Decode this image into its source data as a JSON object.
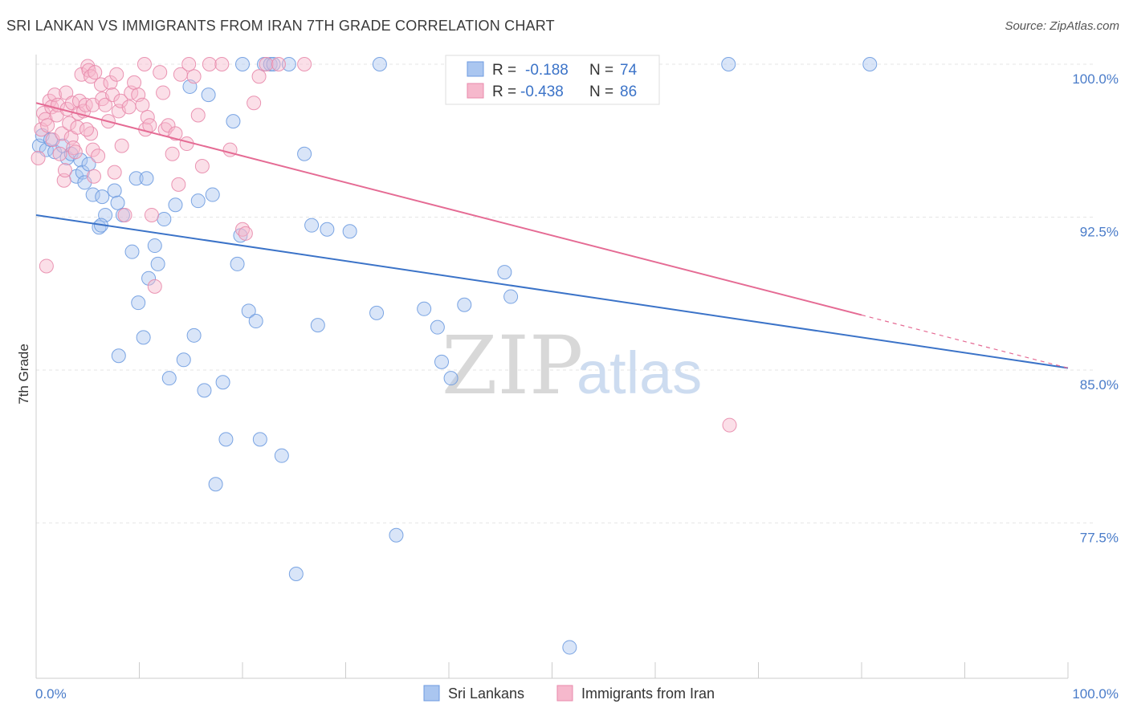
{
  "title": "SRI LANKAN VS IMMIGRANTS FROM IRAN 7TH GRADE CORRELATION CHART",
  "source": "Source: ZipAtlas.com",
  "watermark": {
    "zip": "ZIP",
    "atlas": "atlas"
  },
  "colors": {
    "blue": "#3b73c8",
    "blue_fill": "#aac6f0",
    "pink": "#e56b94",
    "pink_fill": "#f6b8cc",
    "grid": "#e6e6e6",
    "tick_text": "#4a7cc9"
  },
  "legend": {
    "rows": [
      {
        "r_label": "R =",
        "r_value": "-0.188",
        "n_label": "N =",
        "n_value": "74"
      },
      {
        "r_label": "R =",
        "r_value": "-0.438",
        "n_label": "N =",
        "n_value": "86"
      }
    ]
  },
  "chart_data": {
    "type": "scatter",
    "title": "SRI LANKAN VS IMMIGRANTS FROM IRAN 7TH GRADE CORRELATION CHART",
    "xlabel": "",
    "ylabel": "7th Grade",
    "xlim": [
      0,
      100
    ],
    "ylim": [
      70.8,
      101.2
    ],
    "x_tick_labels": [
      "0.0%",
      "100.0%"
    ],
    "y_ticks": [
      77.5,
      85.0,
      92.5,
      100.0
    ],
    "y_tick_labels": [
      "77.5%",
      "85.0%",
      "92.5%",
      "100.0%"
    ],
    "grid": true,
    "series": [
      {
        "name": "Sri Lankans",
        "R": -0.188,
        "N": 74,
        "trend": {
          "x0": 0,
          "y0": 92.6,
          "x1": 100,
          "y1": 85.1
        },
        "points": [
          [
            0.3,
            96.0
          ],
          [
            0.6,
            96.5
          ],
          [
            1.0,
            95.8
          ],
          [
            1.4,
            96.3
          ],
          [
            1.8,
            95.7
          ],
          [
            2.6,
            96.0
          ],
          [
            3.0,
            95.4
          ],
          [
            3.4,
            95.6
          ],
          [
            3.9,
            94.5
          ],
          [
            4.3,
            95.3
          ],
          [
            4.5,
            94.7
          ],
          [
            4.7,
            94.2
          ],
          [
            5.1,
            95.1
          ],
          [
            5.5,
            93.6
          ],
          [
            6.4,
            93.5
          ],
          [
            6.1,
            92.0
          ],
          [
            6.7,
            92.6
          ],
          [
            6.3,
            92.1
          ],
          [
            7.6,
            93.8
          ],
          [
            7.9,
            93.2
          ],
          [
            8.4,
            92.6
          ],
          [
            9.3,
            90.8
          ],
          [
            9.7,
            94.4
          ],
          [
            10.7,
            94.4
          ],
          [
            11.5,
            91.1
          ],
          [
            11.8,
            90.2
          ],
          [
            10.9,
            89.5
          ],
          [
            9.9,
            88.3
          ],
          [
            10.4,
            86.6
          ],
          [
            8.0,
            85.7
          ],
          [
            12.4,
            92.4
          ],
          [
            12.9,
            84.6
          ],
          [
            13.5,
            93.1
          ],
          [
            14.3,
            85.5
          ],
          [
            14.9,
            98.9
          ],
          [
            15.3,
            86.7
          ],
          [
            15.7,
            93.3
          ],
          [
            16.3,
            84.0
          ],
          [
            16.7,
            98.5
          ],
          [
            17.1,
            93.6
          ],
          [
            18.1,
            84.4
          ],
          [
            18.4,
            81.6
          ],
          [
            17.4,
            79.4
          ],
          [
            19.1,
            97.2
          ],
          [
            19.5,
            90.2
          ],
          [
            19.8,
            91.6
          ],
          [
            20.0,
            100.0
          ],
          [
            20.6,
            87.9
          ],
          [
            21.3,
            87.4
          ],
          [
            21.7,
            81.6
          ],
          [
            22.1,
            100.0
          ],
          [
            22.7,
            100.0
          ],
          [
            23.0,
            100.0
          ],
          [
            23.8,
            80.8
          ],
          [
            24.5,
            100.0
          ],
          [
            25.2,
            75.0
          ],
          [
            26.0,
            95.6
          ],
          [
            26.7,
            92.1
          ],
          [
            27.3,
            87.2
          ],
          [
            28.2,
            91.9
          ],
          [
            30.4,
            91.8
          ],
          [
            33.3,
            100.0
          ],
          [
            33.0,
            87.8
          ],
          [
            34.9,
            76.9
          ],
          [
            37.6,
            88.0
          ],
          [
            38.9,
            87.1
          ],
          [
            39.3,
            85.4
          ],
          [
            40.2,
            84.6
          ],
          [
            41.5,
            88.2
          ],
          [
            45.4,
            89.8
          ],
          [
            46.0,
            88.6
          ],
          [
            51.7,
            71.4
          ],
          [
            67.1,
            100.0
          ],
          [
            80.8,
            100.0
          ]
        ]
      },
      {
        "name": "Immigrants from Iran",
        "R": -0.438,
        "N": 86,
        "trend": {
          "x0": 0,
          "y0": 98.1,
          "x1": 80,
          "y1": 87.7,
          "dash_to": {
            "x": 100,
            "y": 85.1
          }
        },
        "points": [
          [
            0.2,
            95.4
          ],
          [
            0.5,
            96.8
          ],
          [
            0.7,
            97.6
          ],
          [
            0.9,
            97.3
          ],
          [
            1.1,
            97.0
          ],
          [
            1.3,
            98.2
          ],
          [
            1.5,
            97.9
          ],
          [
            1.6,
            96.3
          ],
          [
            1.8,
            98.5
          ],
          [
            2.0,
            97.5
          ],
          [
            2.1,
            98.0
          ],
          [
            2.3,
            95.6
          ],
          [
            2.5,
            96.6
          ],
          [
            2.7,
            94.3
          ],
          [
            2.8,
            94.8
          ],
          [
            2.9,
            98.6
          ],
          [
            3.0,
            97.8
          ],
          [
            3.2,
            97.1
          ],
          [
            3.4,
            96.4
          ],
          [
            3.5,
            98.1
          ],
          [
            3.6,
            95.9
          ],
          [
            3.8,
            95.7
          ],
          [
            4.0,
            96.9
          ],
          [
            4.1,
            97.6
          ],
          [
            4.2,
            98.2
          ],
          [
            4.4,
            99.5
          ],
          [
            4.6,
            97.7
          ],
          [
            4.8,
            98.0
          ],
          [
            5.0,
            99.9
          ],
          [
            5.1,
            99.7
          ],
          [
            5.3,
            99.4
          ],
          [
            5.5,
            98.0
          ],
          [
            5.7,
            99.6
          ],
          [
            5.3,
            96.6
          ],
          [
            5.5,
            95.8
          ],
          [
            5.6,
            94.5
          ],
          [
            6.3,
            99.0
          ],
          [
            6.4,
            98.3
          ],
          [
            6.7,
            98.0
          ],
          [
            7.0,
            97.2
          ],
          [
            7.2,
            99.1
          ],
          [
            7.4,
            98.5
          ],
          [
            7.6,
            94.7
          ],
          [
            7.8,
            99.5
          ],
          [
            8.0,
            97.7
          ],
          [
            8.2,
            98.2
          ],
          [
            8.3,
            96.0
          ],
          [
            8.6,
            92.6
          ],
          [
            9.0,
            97.9
          ],
          [
            9.2,
            98.6
          ],
          [
            9.5,
            99.1
          ],
          [
            9.9,
            98.5
          ],
          [
            10.3,
            98.0
          ],
          [
            10.6,
            96.8
          ],
          [
            10.8,
            97.4
          ],
          [
            11.0,
            97.0
          ],
          [
            11.2,
            92.6
          ],
          [
            11.5,
            89.1
          ],
          [
            12.0,
            99.6
          ],
          [
            12.3,
            98.6
          ],
          [
            12.5,
            96.8
          ],
          [
            12.8,
            97.0
          ],
          [
            13.2,
            95.6
          ],
          [
            13.5,
            96.6
          ],
          [
            13.8,
            94.1
          ],
          [
            14.0,
            99.5
          ],
          [
            14.6,
            96.1
          ],
          [
            15.3,
            99.4
          ],
          [
            15.7,
            97.5
          ],
          [
            16.1,
            95.0
          ],
          [
            16.8,
            100.0
          ],
          [
            18.0,
            100.0
          ],
          [
            18.8,
            95.8
          ],
          [
            20.0,
            91.9
          ],
          [
            20.3,
            91.7
          ],
          [
            21.1,
            98.1
          ],
          [
            21.6,
            99.4
          ],
          [
            22.3,
            100.0
          ],
          [
            23.5,
            100.0
          ],
          [
            26.0,
            100.0
          ],
          [
            1.0,
            90.1
          ],
          [
            10.5,
            100.0
          ],
          [
            14.8,
            100.0
          ],
          [
            67.2,
            82.3
          ],
          [
            6.0,
            95.5
          ],
          [
            4.9,
            96.8
          ]
        ]
      }
    ]
  },
  "bottom_legend": [
    {
      "label": "Sri Lankans"
    },
    {
      "label": "Immigrants from Iran"
    }
  ]
}
